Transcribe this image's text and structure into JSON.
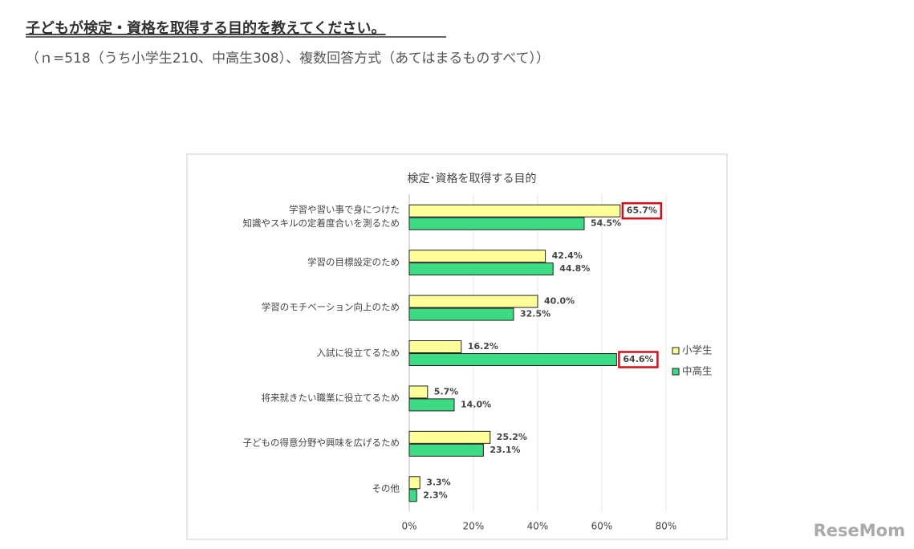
{
  "header": {
    "title": "子どもが検定・資格を取得する目的を教えてください。",
    "subtitle": "（ｎ=518（うち小学生210、中高生308）、複数回答方式（あてはまるものすべて））"
  },
  "watermark": "ReseMom",
  "chart_data": {
    "type": "hbar",
    "title": "検定･資格を取得する目的",
    "categories": [
      "学習や習い事で身につけた\n知識やスキルの定着度合いを測るため",
      "学習の目標設定のため",
      "学習のモチベーション向上のため",
      "入試に役立てるため",
      "将来就きたい職業に役立てるため",
      "子どもの得意分野や興味を広げるため",
      "その他"
    ],
    "series": [
      {
        "name": "小学生",
        "color": "#ffff99",
        "values": [
          65.7,
          42.4,
          40.0,
          16.2,
          5.7,
          25.2,
          3.3
        ],
        "value_labels": [
          "65.7%",
          "42.4%",
          "40.0%",
          "16.2%",
          "5.7%",
          "25.2%",
          "3.3%"
        ]
      },
      {
        "name": "中高生",
        "color": "#3ddc84",
        "values": [
          54.5,
          44.8,
          32.5,
          64.6,
          14.0,
          23.1,
          2.3
        ],
        "value_labels": [
          "54.5%",
          "44.8%",
          "32.5%",
          "64.6%",
          "14.0%",
          "23.1%",
          "2.3%"
        ]
      }
    ],
    "xlim": [
      0,
      80
    ],
    "xticks": [
      {
        "value": 0,
        "label": "0%"
      },
      {
        "value": 20,
        "label": "20%"
      },
      {
        "value": 40,
        "label": "40%"
      },
      {
        "value": 60,
        "label": "60%"
      },
      {
        "value": 80,
        "label": "80%"
      }
    ],
    "grid": true,
    "legend": "right",
    "highlighted": [
      {
        "series": 0,
        "index": 0
      },
      {
        "series": 1,
        "index": 3
      }
    ]
  }
}
